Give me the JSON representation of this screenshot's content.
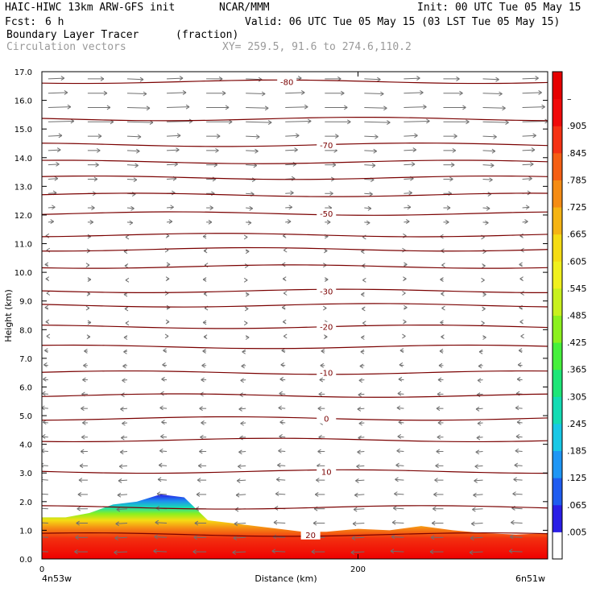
{
  "header": {
    "model": "HAIC-HIWC 13km ARW-GFS init",
    "org": "NCAR/MMM",
    "init": "Init: 00 UTC Tue 05 May 15",
    "fcst_label": "Fcst:",
    "fcst_value": "6 h",
    "valid": "Valid: 06 UTC Tue 05 May 15 (03 LST Tue 05 May 15)",
    "field": "Boundary Layer Tracer",
    "field_units": "(fraction)",
    "vectors": "Circulation vectors",
    "xy": "XY= 259.5, 91.6 to 274.6,110.2"
  },
  "axes": {
    "ylabel": "Height (km)",
    "xlabel": "Distance (km)",
    "left_endpoint": "4n53w",
    "right_endpoint": "6n51w",
    "x_ticks": [
      "0",
      "200"
    ],
    "y_ticks": [
      "0.0",
      "1.0",
      "2.0",
      "3.0",
      "4.0",
      "5.0",
      "6.0",
      "7.0",
      "8.0",
      "9.0",
      "10.0",
      "11.0",
      "12.0",
      "13.0",
      "14.0",
      "15.0",
      "16.0",
      "17.0"
    ]
  },
  "colorbar": {
    "labels": [
      ".005",
      ".065",
      ".125",
      ".185",
      ".245",
      ".305",
      ".365",
      ".425",
      ".485",
      ".545",
      ".605",
      ".665",
      ".725",
      ".785",
      ".845",
      ".905",
      "–"
    ],
    "colors": [
      "#ffffff",
      "#2a1ee6",
      "#1f5cf0",
      "#1e96f5",
      "#19c8e6",
      "#14dcb4",
      "#1ee678",
      "#46f03c",
      "#8cf01e",
      "#c8f01e",
      "#f0f01e",
      "#f5dc14",
      "#f5b414",
      "#f58c14",
      "#f55f14",
      "#f53214",
      "#f00a0a",
      "#e60000"
    ]
  },
  "chart_data": {
    "type": "heatmap",
    "title": "Boundary Layer Tracer",
    "xlabel": "Distance (km)",
    "ylabel": "Height (km)",
    "xlim": [
      0,
      320
    ],
    "ylim": [
      0,
      17
    ],
    "tracer_top_km": {
      "x": [
        0,
        15,
        30,
        45,
        60,
        75,
        90,
        105,
        120,
        135,
        150,
        165,
        180,
        200,
        220,
        240,
        260,
        280,
        300,
        320
      ],
      "y": [
        1.45,
        1.45,
        1.6,
        1.9,
        2.0,
        2.25,
        2.15,
        1.35,
        1.25,
        1.15,
        1.05,
        0.95,
        0.95,
        1.05,
        1.0,
        1.15,
        1.0,
        0.9,
        0.85,
        0.9
      ]
    },
    "temperature_contours_C": [
      {
        "label": "-80",
        "height_km": 16.65
      },
      {
        "label": "-70",
        "height_km": 14.45
      },
      {
        "label": "-50",
        "height_km": 12.05
      },
      {
        "label": "-30",
        "height_km": 9.35
      },
      {
        "label": "-20",
        "height_km": 8.1
      },
      {
        "label": "-10",
        "height_km": 6.5
      },
      {
        "label": "0",
        "height_km": 4.9
      },
      {
        "label": "10",
        "height_km": 3.05
      },
      {
        "label": "20",
        "height_km": 0.85
      }
    ]
  }
}
